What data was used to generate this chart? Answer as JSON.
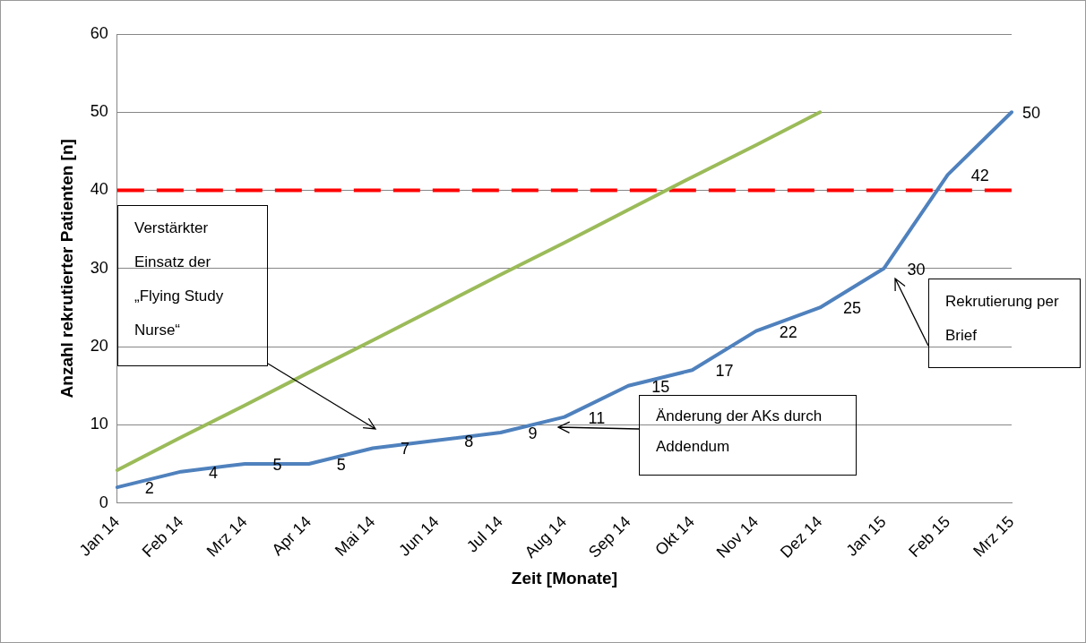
{
  "chart_data": {
    "type": "line",
    "xlabel": "Zeit [Monate]",
    "ylabel": "Anzahl rekrutierter Patienten [n]",
    "categories": [
      "Jan 14",
      "Feb 14",
      "Mrz 14",
      "Apr 14",
      "Mai 14",
      "Jun 14",
      "Jul 14",
      "Aug 14",
      "Sep 14",
      "Okt 14",
      "Nov 14",
      "Dez 14",
      "Jan 15",
      "Feb 15",
      "Mrz 15"
    ],
    "series": [
      {
        "color": "#4f81bd",
        "values": [
          2,
          4,
          5,
          5,
          7,
          8,
          9,
          11,
          15,
          17,
          22,
          25,
          30,
          42,
          50
        ],
        "value_labels": [
          "2",
          "4",
          "5",
          "5",
          "7",
          "8",
          "9",
          "11",
          "15",
          "17",
          "22",
          "25",
          "30",
          "42",
          "50"
        ]
      },
      {
        "color": "#9bbb59",
        "values": [
          4.2,
          8.4,
          12.5,
          16.7,
          20.8,
          25,
          29.2,
          33.3,
          37.5,
          41.7,
          45.8,
          50,
          null,
          null,
          null
        ]
      }
    ],
    "ylim": [
      0,
      60
    ],
    "yticks": [
      0,
      10,
      20,
      30,
      40,
      50,
      60
    ],
    "grid": "y",
    "legend": false,
    "marker": "none",
    "line_style": "solid",
    "ref_lines": [
      {
        "axis": "y",
        "value": 40,
        "label": null,
        "color": "#ff0000",
        "line_style": "dashed"
      }
    ],
    "annotations": [
      "Verstärkter Einsatz der „Flying Study Nurse“",
      "Änderung der AKs durch Addendum",
      "Rekrutierung per Brief"
    ]
  }
}
